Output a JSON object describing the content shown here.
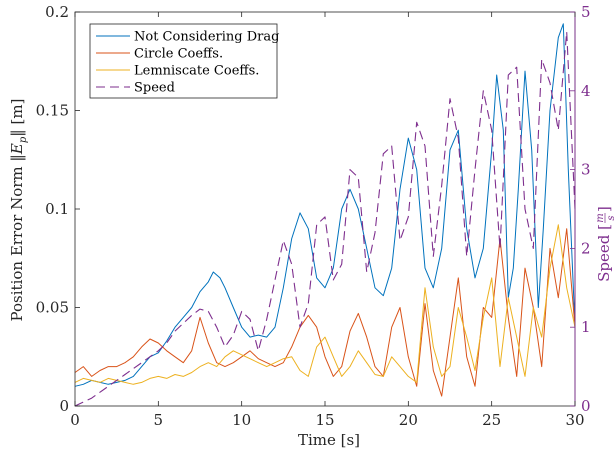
{
  "chart_data": {
    "type": "line",
    "xlabel": "Time [s]",
    "ylabel_left": "Position Error Norm ‖E_p‖ [m]",
    "ylabel_left_parts": [
      "Position Error Norm ",
      "‖",
      "E",
      "p",
      "‖",
      " [m]"
    ],
    "ylabel_right": "Speed [m/s]",
    "ylabel_right_parts": [
      "Speed [",
      "m",
      "s",
      "]"
    ],
    "xlim": [
      0,
      30
    ],
    "ylim_left": [
      0,
      0.2
    ],
    "ylim_right": [
      0,
      5
    ],
    "xticks": [
      "0",
      "5",
      "10",
      "15",
      "20",
      "25",
      "30"
    ],
    "yticks_left": [
      "0",
      "0.05",
      "0.1",
      "0.15",
      "0.2"
    ],
    "yticks_right": [
      "0",
      "1",
      "2",
      "3",
      "4",
      "5"
    ],
    "grid": false,
    "legend_position": "top-left",
    "series": [
      {
        "name": "Not Considering Drag",
        "axis": "left",
        "color": "#0072BD",
        "style": "solid",
        "x": [
          0,
          0.5,
          1,
          1.5,
          2,
          2.5,
          3,
          3.5,
          4,
          4.5,
          5,
          5.5,
          6,
          6.5,
          7,
          7.5,
          8,
          8.3,
          8.7,
          9,
          9.5,
          10,
          10.5,
          11,
          11.5,
          12,
          12.5,
          13,
          13.5,
          14,
          14.5,
          15,
          15.5,
          16,
          16.5,
          17,
          17.5,
          18,
          18.5,
          19,
          19.5,
          20,
          20.5,
          21,
          21.5,
          22,
          22.5,
          23,
          23.5,
          24,
          24.5,
          25,
          25.3,
          25.7,
          26,
          26.3,
          26.6,
          27,
          27.4,
          27.8,
          28.1,
          28.5,
          29,
          29.3,
          29.6,
          30
        ],
        "y": [
          0.01,
          0.011,
          0.013,
          0.012,
          0.011,
          0.012,
          0.013,
          0.015,
          0.02,
          0.025,
          0.027,
          0.033,
          0.04,
          0.045,
          0.05,
          0.058,
          0.063,
          0.068,
          0.065,
          0.06,
          0.05,
          0.04,
          0.035,
          0.036,
          0.035,
          0.04,
          0.06,
          0.085,
          0.098,
          0.09,
          0.065,
          0.06,
          0.07,
          0.1,
          0.11,
          0.1,
          0.08,
          0.06,
          0.056,
          0.07,
          0.11,
          0.136,
          0.12,
          0.07,
          0.06,
          0.08,
          0.13,
          0.14,
          0.09,
          0.065,
          0.08,
          0.13,
          0.168,
          0.14,
          0.055,
          0.07,
          0.11,
          0.17,
          0.13,
          0.05,
          0.09,
          0.15,
          0.187,
          0.194,
          0.12,
          0.04
        ]
      },
      {
        "name": "Circle Coeffs.",
        "axis": "left",
        "color": "#D95319",
        "style": "solid",
        "x": [
          0,
          0.5,
          1,
          1.5,
          2,
          2.5,
          3,
          3.5,
          4,
          4.5,
          5,
          5.5,
          6,
          6.5,
          7,
          7.5,
          8,
          8.5,
          9,
          9.5,
          10,
          10.5,
          11,
          11.5,
          12,
          12.5,
          13,
          13.5,
          14,
          14.5,
          15,
          15.5,
          16,
          16.5,
          17,
          17.5,
          18,
          18.5,
          19,
          19.5,
          20,
          20.5,
          21,
          21.5,
          22,
          22.5,
          23,
          23.5,
          24,
          24.5,
          25,
          25.5,
          26,
          26.5,
          27,
          27.5,
          28,
          28.5,
          29,
          29.5,
          30
        ],
        "y": [
          0.017,
          0.02,
          0.015,
          0.018,
          0.02,
          0.02,
          0.022,
          0.025,
          0.03,
          0.034,
          0.032,
          0.028,
          0.025,
          0.022,
          0.028,
          0.045,
          0.032,
          0.022,
          0.02,
          0.022,
          0.025,
          0.028,
          0.024,
          0.022,
          0.02,
          0.022,
          0.03,
          0.04,
          0.046,
          0.04,
          0.025,
          0.015,
          0.02,
          0.038,
          0.047,
          0.035,
          0.02,
          0.015,
          0.04,
          0.05,
          0.025,
          0.01,
          0.052,
          0.018,
          0.005,
          0.035,
          0.065,
          0.025,
          0.01,
          0.05,
          0.045,
          0.085,
          0.045,
          0.015,
          0.07,
          0.05,
          0.02,
          0.08,
          0.055,
          0.09,
          0.04
        ]
      },
      {
        "name": "Lemniscate Coeffs.",
        "axis": "left",
        "color": "#EDB120",
        "style": "solid",
        "x": [
          0,
          0.5,
          1,
          1.5,
          2,
          2.5,
          3,
          3.5,
          4,
          4.5,
          5,
          5.5,
          6,
          6.5,
          7,
          7.5,
          8,
          8.5,
          9,
          9.5,
          10,
          10.5,
          11,
          11.5,
          12,
          12.5,
          13,
          13.5,
          14,
          14.5,
          15,
          15.5,
          16,
          16.5,
          17,
          17.5,
          18,
          18.5,
          19,
          19.5,
          20,
          20.5,
          21,
          21.5,
          22,
          22.5,
          23,
          23.5,
          24,
          24.5,
          25,
          25.5,
          26,
          26.5,
          27,
          27.5,
          28,
          28.5,
          29,
          29.5,
          30
        ],
        "y": [
          0.012,
          0.014,
          0.013,
          0.012,
          0.014,
          0.013,
          0.012,
          0.011,
          0.012,
          0.014,
          0.015,
          0.014,
          0.016,
          0.015,
          0.017,
          0.02,
          0.022,
          0.02,
          0.025,
          0.028,
          0.026,
          0.024,
          0.022,
          0.02,
          0.022,
          0.024,
          0.025,
          0.018,
          0.015,
          0.03,
          0.035,
          0.025,
          0.015,
          0.02,
          0.028,
          0.022,
          0.016,
          0.015,
          0.025,
          0.02,
          0.015,
          0.012,
          0.06,
          0.03,
          0.015,
          0.02,
          0.05,
          0.035,
          0.018,
          0.045,
          0.065,
          0.02,
          0.055,
          0.035,
          0.015,
          0.05,
          0.035,
          0.07,
          0.092,
          0.06,
          0.04
        ]
      },
      {
        "name": "Speed",
        "axis": "right",
        "color": "#7E2F8E",
        "style": "dashed",
        "x": [
          0,
          1,
          2,
          3,
          4,
          5,
          5.5,
          6,
          6.5,
          7,
          7.5,
          8,
          8.5,
          9,
          9.5,
          10,
          10.5,
          11,
          11.5,
          12,
          12.5,
          13,
          13.5,
          14,
          14.5,
          15,
          15.5,
          16,
          16.5,
          17,
          17.5,
          18,
          18.5,
          19,
          19.5,
          20,
          20.5,
          21,
          21.5,
          22,
          22.5,
          23,
          23.5,
          24,
          24.5,
          25,
          25.5,
          26,
          26.5,
          27,
          27.5,
          28,
          28.5,
          29,
          29.5,
          30
        ],
        "y": [
          0,
          0.1,
          0.25,
          0.4,
          0.55,
          0.7,
          0.8,
          0.95,
          1.05,
          1.15,
          1.23,
          1.2,
          1.0,
          0.75,
          0.9,
          1.2,
          1.1,
          0.7,
          1.1,
          1.6,
          2.1,
          1.8,
          1.0,
          1.3,
          2.3,
          2.4,
          1.6,
          1.8,
          3.0,
          2.9,
          1.7,
          2.2,
          3.2,
          3.3,
          2.1,
          2.4,
          3.6,
          3.3,
          1.9,
          2.8,
          3.9,
          3.4,
          1.9,
          3.0,
          4.0,
          3.5,
          2.0,
          4.2,
          4.3,
          2.5,
          2.0,
          4.4,
          4.1,
          3.5,
          4.75,
          2.5
        ]
      }
    ]
  }
}
